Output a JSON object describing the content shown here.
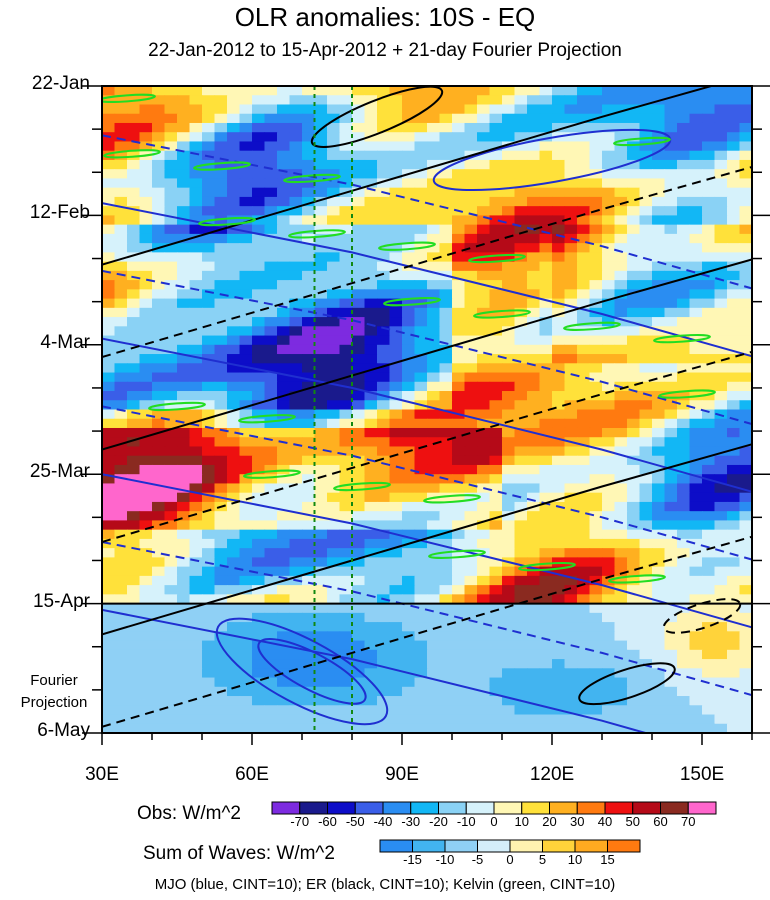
{
  "chart_data": {
    "type": "heatmap",
    "title": "OLR anomalies: 10S - EQ",
    "subtitle": "22-Jan-2012 to 15-Apr-2012 + 21-day Fourier Projection",
    "x_axis": {
      "range": [
        30,
        160
      ],
      "ticks": [
        30,
        60,
        90,
        120,
        150
      ],
      "tick_labels": [
        "30E",
        "60E",
        "90E",
        "120E",
        "150E"
      ]
    },
    "y_axis": {
      "range_days": [
        0,
        105
      ],
      "ticks_days": [
        0,
        21,
        42,
        63,
        84,
        105
      ],
      "tick_labels": [
        "22-Jan",
        "12-Feb",
        "4-Mar",
        "25-Mar",
        "15-Apr",
        "6-May"
      ],
      "projection_label": "Fourier Projection",
      "projection_start_day": 84
    },
    "reference_longitudes": [
      72.5,
      80
    ],
    "obs_colorbar": {
      "label": "Obs: W/m^2",
      "levels": [
        "-70",
        "-60",
        "-50",
        "-40",
        "-30",
        "-20",
        "-10",
        "0",
        "10",
        "20",
        "30",
        "40",
        "50",
        "60",
        "70"
      ],
      "colors": [
        "#7d2be0",
        "#1a1a8c",
        "#0d0dc8",
        "#3a5ee8",
        "#2a8df2",
        "#12b7f5",
        "#8ad2f5",
        "#d6f2fb",
        "#fff7b5",
        "#ffe13a",
        "#ffb020",
        "#ff7a10",
        "#ee1010",
        "#b50a18",
        "#8a2a20",
        "#ff66cc"
      ]
    },
    "waves_colorbar": {
      "label": "Sum of Waves: W/m^2",
      "levels": [
        "-15",
        "-10",
        "-5",
        "0",
        "5",
        "10",
        "15"
      ],
      "colors": [
        "#2a8df2",
        "#42b4f0",
        "#8fd0f5",
        "#d4eefa",
        "#fff3b0",
        "#ffd33a",
        "#ffaa20",
        "#ff7a10"
      ]
    },
    "contours": "MJO (blue, CINT=10); ER (black, CINT=10); Kelvin (green, CINT=10)"
  }
}
